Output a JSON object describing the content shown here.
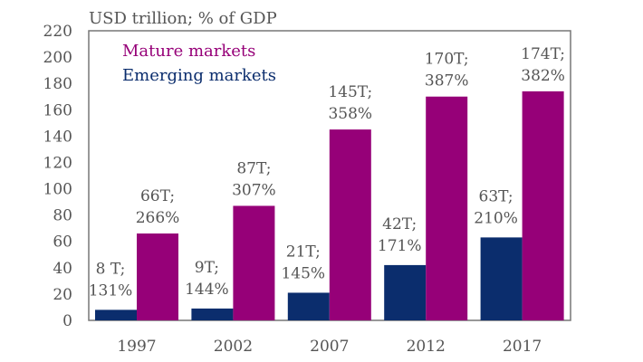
{
  "chart_data": {
    "type": "bar",
    "title": "",
    "ylabel": "USD trillion; % of GDP",
    "xlabel": "",
    "ylim": [
      0,
      220
    ],
    "yticks": [
      0,
      20,
      40,
      60,
      80,
      100,
      120,
      140,
      160,
      180,
      200,
      220
    ],
    "categories": [
      "1997",
      "2002",
      "2007",
      "2012",
      "2017"
    ],
    "legend_position": "top-left",
    "series": [
      {
        "name": "Emerging markets",
        "color": "#0b2d6d",
        "values": [
          8,
          9,
          21,
          42,
          63
        ],
        "labels": [
          [
            "8 T;",
            "131%"
          ],
          [
            "9T;",
            "144%"
          ],
          [
            "21T;",
            "145%"
          ],
          [
            "42T;",
            "171%"
          ],
          [
            "63T;",
            "210%"
          ]
        ]
      },
      {
        "name": "Mature markets",
        "color": "#960078",
        "values": [
          66,
          87,
          145,
          170,
          174
        ],
        "labels": [
          [
            "66T;",
            "266%"
          ],
          [
            "87T;",
            "307%"
          ],
          [
            "145T;",
            "358%"
          ],
          [
            "170T;",
            "387%"
          ],
          [
            "174T;",
            "382%"
          ]
        ]
      }
    ]
  }
}
